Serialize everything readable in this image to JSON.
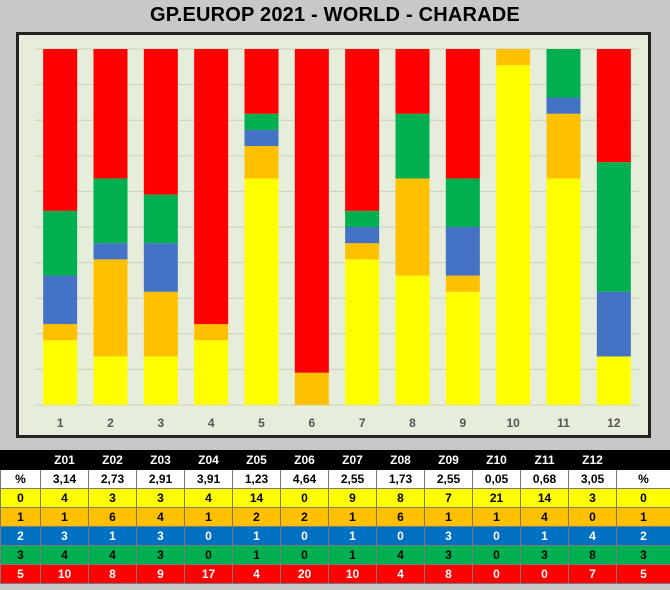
{
  "title": "GP.EUROP 2021 - WORLD  - CHARADE",
  "colors": {
    "level0": "#ffff00",
    "level1": "#ffc000",
    "level2": "#4472c4",
    "level3": "#00b050",
    "level5": "#ff0000",
    "plot_bg": "#e6edda"
  },
  "chart_data": {
    "type": "bar",
    "stacked": true,
    "normalized": true,
    "categories": [
      "1",
      "2",
      "3",
      "4",
      "5",
      "6",
      "7",
      "8",
      "9",
      "10",
      "11",
      "12"
    ],
    "series": [
      {
        "key": "0",
        "values": [
          4,
          3,
          3,
          4,
          14,
          0,
          9,
          8,
          7,
          21,
          14,
          3
        ]
      },
      {
        "key": "1",
        "values": [
          1,
          6,
          4,
          1,
          2,
          2,
          1,
          6,
          1,
          1,
          4,
          0
        ]
      },
      {
        "key": "2",
        "values": [
          3,
          1,
          3,
          0,
          1,
          0,
          1,
          0,
          3,
          0,
          1,
          4
        ]
      },
      {
        "key": "3",
        "values": [
          4,
          4,
          3,
          0,
          1,
          0,
          1,
          4,
          3,
          0,
          3,
          8
        ]
      },
      {
        "key": "5",
        "values": [
          10,
          8,
          9,
          17,
          4,
          20,
          10,
          4,
          8,
          0,
          0,
          7
        ]
      }
    ],
    "grid": true,
    "legend": "none"
  },
  "table": {
    "zones": [
      "Z01",
      "Z02",
      "Z03",
      "Z04",
      "Z05",
      "Z06",
      "Z07",
      "Z08",
      "Z09",
      "Z10",
      "Z11",
      "Z12"
    ],
    "rows": [
      {
        "label": "%",
        "end": "%",
        "values": [
          "3,14",
          "2,73",
          "2,91",
          "3,91",
          "1,23",
          "4,64",
          "2,55",
          "1,73",
          "2,55",
          "0,05",
          "0,68",
          "3,05"
        ]
      },
      {
        "label": "0",
        "end": "0",
        "values": [
          "4",
          "3",
          "3",
          "4",
          "14",
          "0",
          "9",
          "8",
          "7",
          "21",
          "14",
          "3"
        ]
      },
      {
        "label": "1",
        "end": "1",
        "values": [
          "1",
          "6",
          "4",
          "1",
          "2",
          "2",
          "1",
          "6",
          "1",
          "1",
          "4",
          "0"
        ]
      },
      {
        "label": "2",
        "end": "2",
        "values": [
          "3",
          "1",
          "3",
          "0",
          "1",
          "0",
          "1",
          "0",
          "3",
          "0",
          "1",
          "4"
        ]
      },
      {
        "label": "3",
        "end": "3",
        "values": [
          "4",
          "4",
          "3",
          "0",
          "1",
          "0",
          "1",
          "4",
          "3",
          "0",
          "3",
          "8"
        ]
      },
      {
        "label": "5",
        "end": "5",
        "values": [
          "10",
          "8",
          "9",
          "17",
          "4",
          "20",
          "10",
          "4",
          "8",
          "0",
          "0",
          "7"
        ]
      }
    ]
  }
}
